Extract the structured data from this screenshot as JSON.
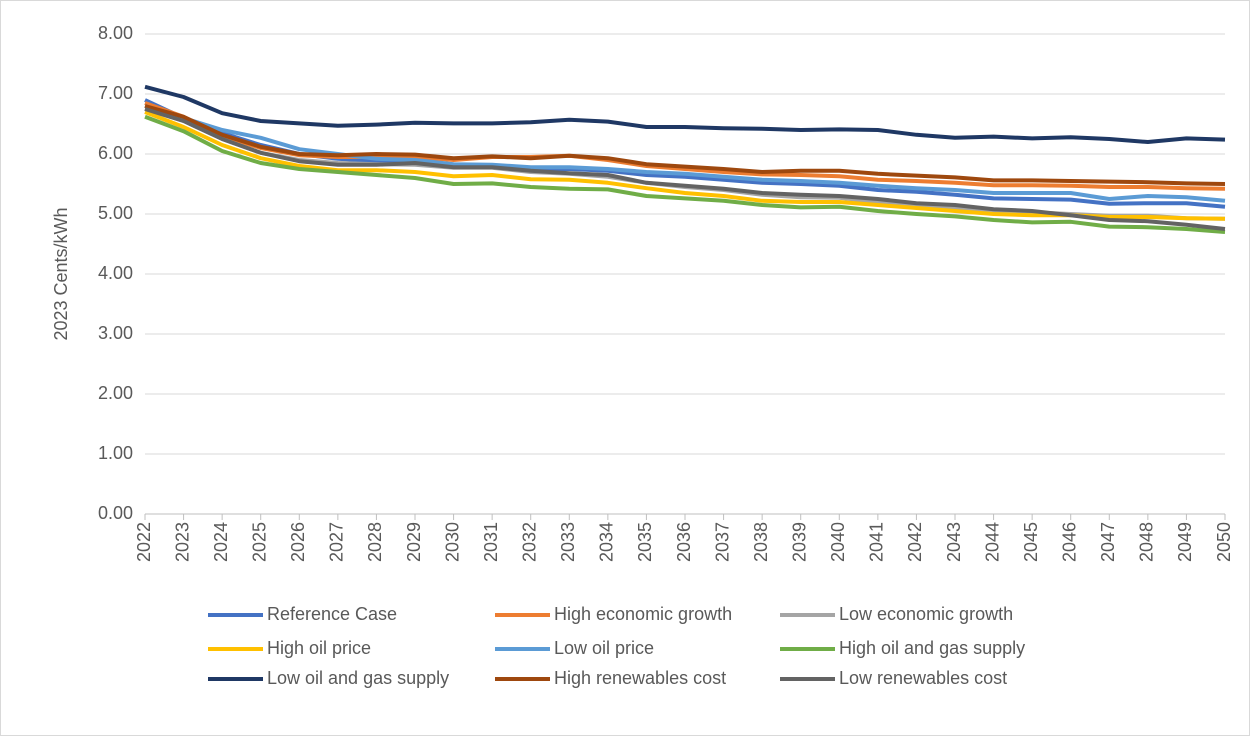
{
  "chart_data": {
    "type": "line",
    "y_label": "2023 Cents/kWh",
    "categories": [
      "2022",
      "2023",
      "2024",
      "2025",
      "2026",
      "2027",
      "2028",
      "2029",
      "2030",
      "2031",
      "2032",
      "2033",
      "2034",
      "2035",
      "2036",
      "2037",
      "2038",
      "2039",
      "2040",
      "2041",
      "2042",
      "2043",
      "2044",
      "2045",
      "2046",
      "2047",
      "2048",
      "2049",
      "2050"
    ],
    "ylim": [
      0,
      8
    ],
    "yticks": [
      {
        "value": 0,
        "label": "0.00"
      },
      {
        "value": 1,
        "label": "1.00"
      },
      {
        "value": 2,
        "label": "2.00"
      },
      {
        "value": 3,
        "label": "3.00"
      },
      {
        "value": 4,
        "label": "4.00"
      },
      {
        "value": 5,
        "label": "5.00"
      },
      {
        "value": 6,
        "label": "6.00"
      },
      {
        "value": 7,
        "label": "7.00"
      },
      {
        "value": 8,
        "label": "8.00"
      }
    ],
    "grid": true,
    "legend": "bottom",
    "series": [
      {
        "name": "Reference Case",
        "color": "#4472c4",
        "values": [
          6.9,
          6.6,
          6.35,
          6.15,
          6.0,
          5.92,
          5.88,
          5.87,
          5.8,
          5.8,
          5.75,
          5.75,
          5.72,
          5.65,
          5.62,
          5.57,
          5.52,
          5.5,
          5.47,
          5.4,
          5.37,
          5.32,
          5.26,
          5.25,
          5.24,
          5.17,
          5.18,
          5.18,
          5.12
        ]
      },
      {
        "name": "High economic growth",
        "color": "#ed7d31",
        "values": [
          6.85,
          6.62,
          6.3,
          6.1,
          5.98,
          5.95,
          5.95,
          5.95,
          5.9,
          5.95,
          5.95,
          5.97,
          5.9,
          5.8,
          5.75,
          5.7,
          5.66,
          5.65,
          5.63,
          5.57,
          5.55,
          5.52,
          5.48,
          5.48,
          5.47,
          5.45,
          5.45,
          5.43,
          5.42
        ]
      },
      {
        "name": "Low economic growth",
        "color": "#a5a5a5",
        "values": [
          6.75,
          6.55,
          6.25,
          6.02,
          5.9,
          5.85,
          5.83,
          5.82,
          5.77,
          5.77,
          5.7,
          5.67,
          5.62,
          5.52,
          5.45,
          5.4,
          5.32,
          5.28,
          5.27,
          5.2,
          5.15,
          5.1,
          5.05,
          5.03,
          5.0,
          4.97,
          4.97,
          4.93,
          4.92
        ]
      },
      {
        "name": "High oil price",
        "color": "#ffc000",
        "values": [
          6.7,
          6.45,
          6.15,
          5.93,
          5.8,
          5.73,
          5.73,
          5.7,
          5.63,
          5.65,
          5.58,
          5.57,
          5.52,
          5.43,
          5.35,
          5.3,
          5.22,
          5.2,
          5.2,
          5.15,
          5.1,
          5.05,
          5.0,
          4.98,
          4.98,
          4.95,
          4.95,
          4.93,
          4.92
        ]
      },
      {
        "name": "Low oil price",
        "color": "#5b9bd5",
        "values": [
          6.8,
          6.6,
          6.4,
          6.27,
          6.08,
          6.0,
          5.92,
          5.9,
          5.83,
          5.82,
          5.78,
          5.78,
          5.75,
          5.7,
          5.67,
          5.62,
          5.57,
          5.55,
          5.52,
          5.47,
          5.43,
          5.4,
          5.35,
          5.35,
          5.35,
          5.25,
          5.3,
          5.28,
          5.22
        ]
      },
      {
        "name": "High oil and gas supply",
        "color": "#70ad47",
        "values": [
          6.62,
          6.38,
          6.05,
          5.85,
          5.75,
          5.7,
          5.65,
          5.6,
          5.5,
          5.51,
          5.45,
          5.42,
          5.41,
          5.3,
          5.26,
          5.22,
          5.15,
          5.11,
          5.12,
          5.05,
          5.0,
          4.96,
          4.9,
          4.86,
          4.87,
          4.79,
          4.78,
          4.75,
          4.7
        ]
      },
      {
        "name": "Low oil and gas supply",
        "color": "#1f3864",
        "values": [
          7.12,
          6.95,
          6.68,
          6.55,
          6.51,
          6.47,
          6.49,
          6.52,
          6.51,
          6.51,
          6.53,
          6.57,
          6.54,
          6.45,
          6.45,
          6.43,
          6.42,
          6.4,
          6.41,
          6.4,
          6.32,
          6.27,
          6.29,
          6.26,
          6.28,
          6.25,
          6.2,
          6.26,
          6.24
        ]
      },
      {
        "name": "High renewables cost",
        "color": "#9e480e",
        "values": [
          6.8,
          6.62,
          6.32,
          6.12,
          6.0,
          5.98,
          6.0,
          5.99,
          5.93,
          5.96,
          5.93,
          5.97,
          5.93,
          5.83,
          5.79,
          5.75,
          5.7,
          5.72,
          5.72,
          5.67,
          5.64,
          5.61,
          5.56,
          5.56,
          5.55,
          5.54,
          5.53,
          5.51,
          5.5
        ]
      },
      {
        "name": "Low renewables cost",
        "color": "#636363",
        "values": [
          6.75,
          6.55,
          6.25,
          6.02,
          5.88,
          5.82,
          5.82,
          5.85,
          5.78,
          5.78,
          5.72,
          5.68,
          5.65,
          5.52,
          5.47,
          5.42,
          5.35,
          5.32,
          5.3,
          5.25,
          5.18,
          5.15,
          5.08,
          5.05,
          4.98,
          4.9,
          4.88,
          4.82,
          4.75
        ]
      }
    ]
  }
}
